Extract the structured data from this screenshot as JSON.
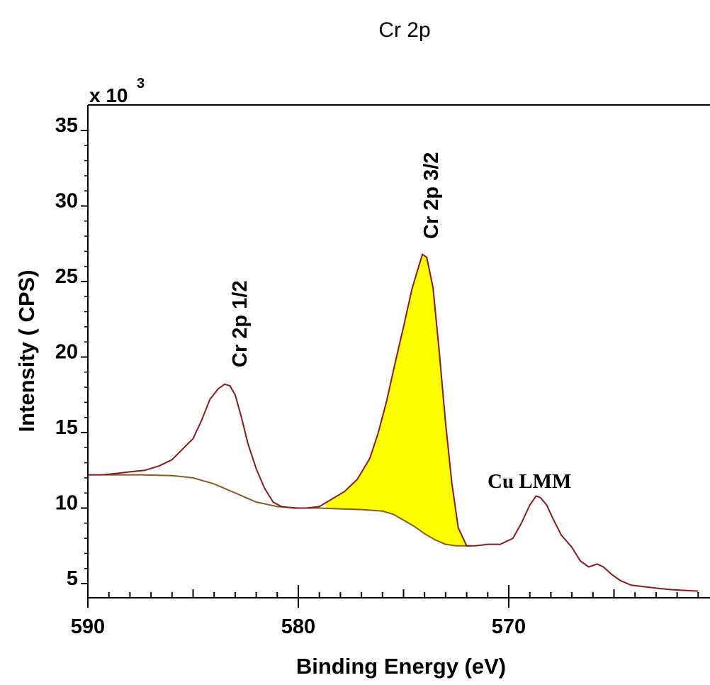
{
  "chart_data": {
    "type": "line",
    "title": "Cr 2p",
    "xlabel": "Binding Energy (eV)",
    "ylabel": "Intensity ( CPS)",
    "y_multiplier_base": "x 10",
    "y_multiplier_exp": "3",
    "xlim": [
      590,
      561
    ],
    "ylim": [
      4.2,
      36
    ],
    "x_ticks": [
      590,
      580,
      570
    ],
    "y_ticks": [
      5,
      10,
      15,
      20,
      25,
      30,
      35
    ],
    "x_reversed": true,
    "grid": false,
    "colors": {
      "spectrum": "#8b1a1a",
      "background": "#8b5a1e",
      "fill": "#ffff00"
    },
    "annotations": [
      {
        "text": "Cr 2p 1/2",
        "x": 583.2,
        "y": 18.5,
        "rotation": -90
      },
      {
        "text": "Cr 2p 3/2",
        "x": 574.1,
        "y": 27.0,
        "rotation": -90
      },
      {
        "text": "Cu LMM",
        "x": 568.5,
        "y": 11.6,
        "rotation": 0
      }
    ],
    "series": [
      {
        "role": "spectrum",
        "x": [
          590,
          589.3,
          588.6,
          588.0,
          587.3,
          586.6,
          586.0,
          585.5,
          585.0,
          584.6,
          584.2,
          583.8,
          583.5,
          583.25,
          583.0,
          582.7,
          582.4,
          582.0,
          581.6,
          581.2,
          580.8,
          580.2,
          579.6,
          579.0,
          578.4,
          577.8,
          577.2,
          576.6,
          576.2,
          575.8,
          575.4,
          575.0,
          574.6,
          574.3,
          574.1,
          573.9,
          573.6,
          573.3,
          573.0,
          572.7,
          572.4,
          572.0,
          571.6,
          571.0,
          570.4,
          569.8,
          569.4,
          569.0,
          568.7,
          568.5,
          568.2,
          567.9,
          567.5,
          567.0,
          566.6,
          566.2,
          565.8,
          565.5,
          565.1,
          564.7,
          564.2,
          563.6,
          563.0,
          562.3,
          561.6,
          561.0
        ],
        "y": [
          12.2,
          12.2,
          12.3,
          12.4,
          12.5,
          12.8,
          13.2,
          13.9,
          14.6,
          15.8,
          17.2,
          17.9,
          18.2,
          18.1,
          17.5,
          16.0,
          14.3,
          12.6,
          11.3,
          10.4,
          10.1,
          10.0,
          10.0,
          10.1,
          10.6,
          11.1,
          11.9,
          13.3,
          15.0,
          17.1,
          19.6,
          22.0,
          24.5,
          25.9,
          26.8,
          26.6,
          24.6,
          20.3,
          15.6,
          11.6,
          8.7,
          7.5,
          7.5,
          7.6,
          7.6,
          8.0,
          9.0,
          10.2,
          10.8,
          10.7,
          10.2,
          9.3,
          8.2,
          7.4,
          6.5,
          6.1,
          6.3,
          6.1,
          5.6,
          5.2,
          4.9,
          4.8,
          4.7,
          4.6,
          4.55,
          4.5
        ]
      },
      {
        "role": "background",
        "x": [
          589.2,
          587.5,
          586.0,
          585.0,
          584.0,
          583.0,
          582.0,
          581.0,
          580.0,
          579.0,
          578.0,
          577.0,
          576.0,
          575.5,
          575.0,
          574.5,
          574.0,
          573.5,
          573.0,
          572.5,
          572.2,
          571.8
        ],
        "y": [
          12.2,
          12.2,
          12.15,
          12.0,
          11.6,
          11.0,
          10.4,
          10.1,
          10.0,
          10.0,
          9.95,
          9.9,
          9.8,
          9.6,
          9.2,
          8.8,
          8.3,
          7.9,
          7.6,
          7.5,
          7.5,
          7.5
        ]
      },
      {
        "role": "fill_region",
        "x_range": [
          578.7,
          571.8
        ]
      }
    ]
  }
}
